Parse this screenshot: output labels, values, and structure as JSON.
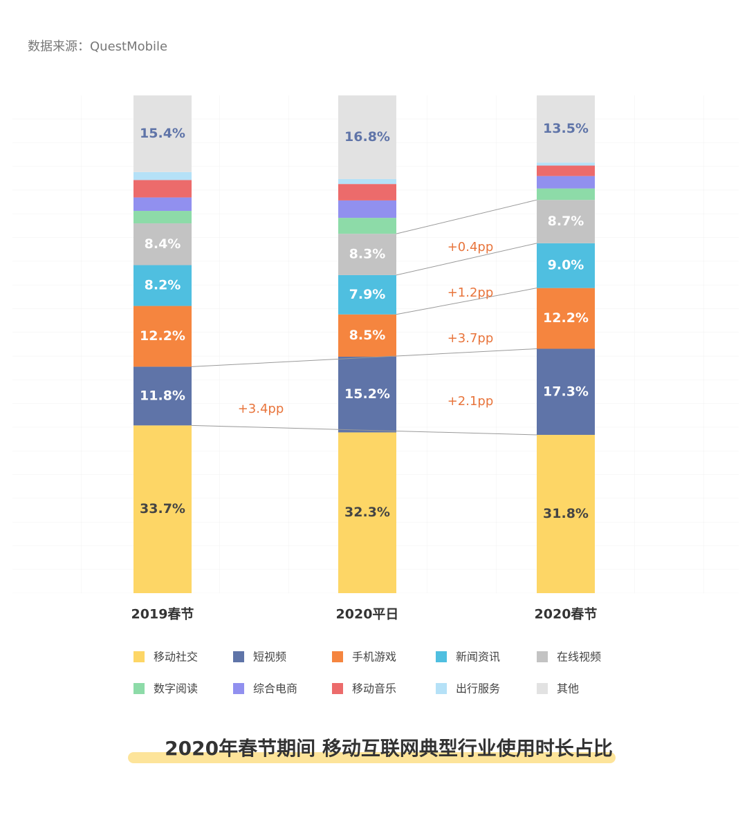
{
  "source": "数据来源：QuestMobile",
  "chart_data": {
    "type": "stacked_bar",
    "title": "2020年春节期间 移动互联网典型行业使用时长占比",
    "categories": [
      "2019春节",
      "2020平日",
      "2020春节"
    ],
    "ylim": [
      0,
      100
    ],
    "series": [
      {
        "name": "移动社交",
        "color": "#fdd666",
        "values": [
          33.7,
          32.3,
          31.8
        ],
        "value_labels": [
          "33.7%",
          "32.3%",
          "31.8%"
        ]
      },
      {
        "name": "短视频",
        "color": "#5f74a8",
        "values": [
          11.8,
          15.2,
          17.3
        ],
        "value_labels": [
          "11.8%",
          "15.2%",
          "17.3%"
        ]
      },
      {
        "name": "手机游戏",
        "color": "#f5853f",
        "values": [
          12.2,
          8.5,
          12.2
        ],
        "value_labels": [
          "12.2%",
          "8.5%",
          "12.2%"
        ]
      },
      {
        "name": "新闻资讯",
        "color": "#4fbfe0",
        "values": [
          8.2,
          7.9,
          9.0
        ],
        "value_labels": [
          "8.2%",
          "7.9%",
          "9.0%"
        ]
      },
      {
        "name": "在线视频",
        "color": "#c3c3c3",
        "values": [
          8.4,
          8.3,
          8.7
        ],
        "value_labels": [
          "8.4%",
          "8.3%",
          "8.7%"
        ]
      },
      {
        "name": "数字阅读",
        "color": "#8ddba8",
        "values": [
          2.5,
          3.2,
          2.3
        ]
      },
      {
        "name": "综合电商",
        "color": "#9190ef",
        "values": [
          2.7,
          3.5,
          2.5
        ]
      },
      {
        "name": "移动音乐",
        "color": "#ec6b6b",
        "values": [
          3.5,
          3.3,
          2.1
        ]
      },
      {
        "name": "出行服务",
        "color": "#b5e1f7",
        "values": [
          1.6,
          1.0,
          0.6
        ]
      },
      {
        "name": "其他",
        "color": "#e2e2e2",
        "values": [
          15.4,
          16.8,
          13.5
        ],
        "value_labels": [
          "15.4%",
          "16.8%",
          "13.5%"
        ]
      }
    ],
    "annotations": [
      "+0.4pp",
      "+1.2pp",
      "+3.7pp",
      "+2.1pp",
      "+3.4pp"
    ]
  }
}
